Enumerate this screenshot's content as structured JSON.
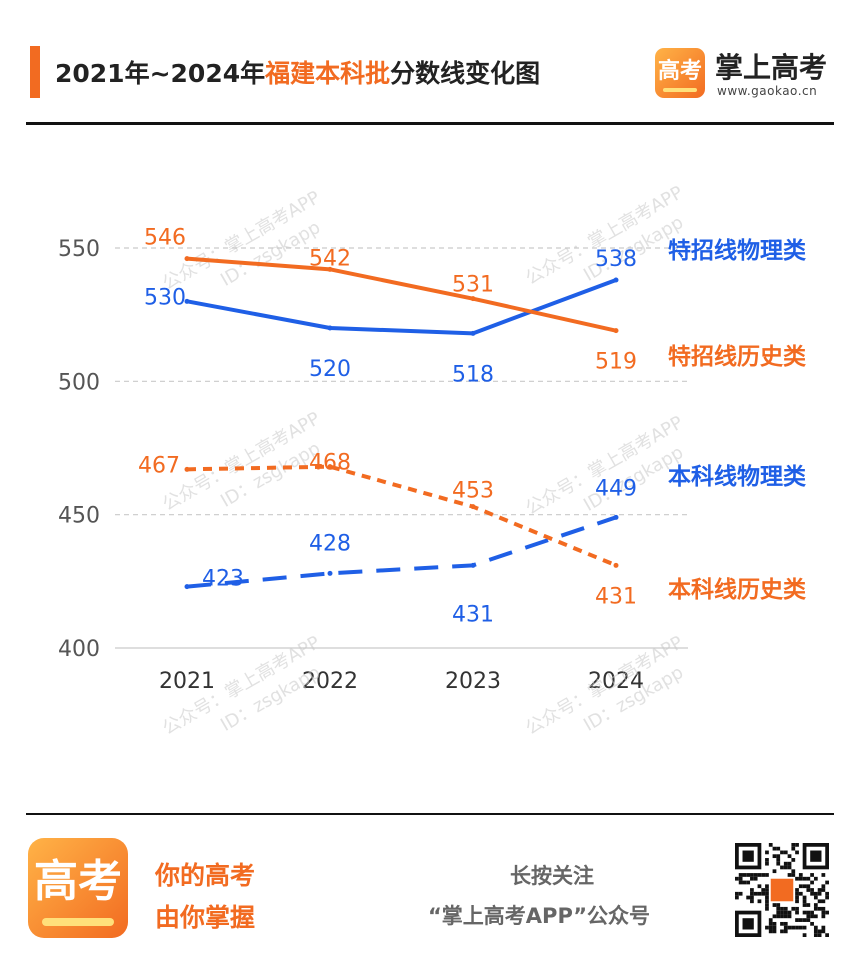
{
  "title": {
    "prefix": "2021年~2024年",
    "highlight": "福建本科批",
    "suffix": "分数线变化图"
  },
  "brand": {
    "logo_text": "高考",
    "name": "掌上高考",
    "url": "www.gaokao.cn"
  },
  "watermark": {
    "line1": "公众号：掌上高考APP",
    "line2": "ID：zsgkapp"
  },
  "chart_data": {
    "type": "line",
    "categories": [
      "2021",
      "2022",
      "2023",
      "2024"
    ],
    "ylim": [
      400,
      550
    ],
    "yticks": [
      400,
      450,
      500,
      550
    ],
    "grid": true,
    "series": [
      {
        "name": "特招线物理类",
        "values": [
          530,
          520,
          518,
          538
        ],
        "color": "#1f5fe6",
        "style": "solid"
      },
      {
        "name": "特招线历史类",
        "values": [
          546,
          542,
          531,
          519
        ],
        "color": "#f26b21",
        "style": "solid"
      },
      {
        "name": "本科线物理类",
        "values": [
          423,
          428,
          431,
          449
        ],
        "color": "#1f5fe6",
        "style": "dashed"
      },
      {
        "name": "本科线历史类",
        "values": [
          467,
          468,
          453,
          431
        ],
        "color": "#f26b21",
        "style": "dotted"
      }
    ]
  },
  "footer": {
    "logo_text": "高考",
    "slogan_line1": "你的高考",
    "slogan_line2": "由你掌握",
    "follow_line1": "长按关注",
    "follow_line2": "“掌上高考APP”公众号"
  }
}
